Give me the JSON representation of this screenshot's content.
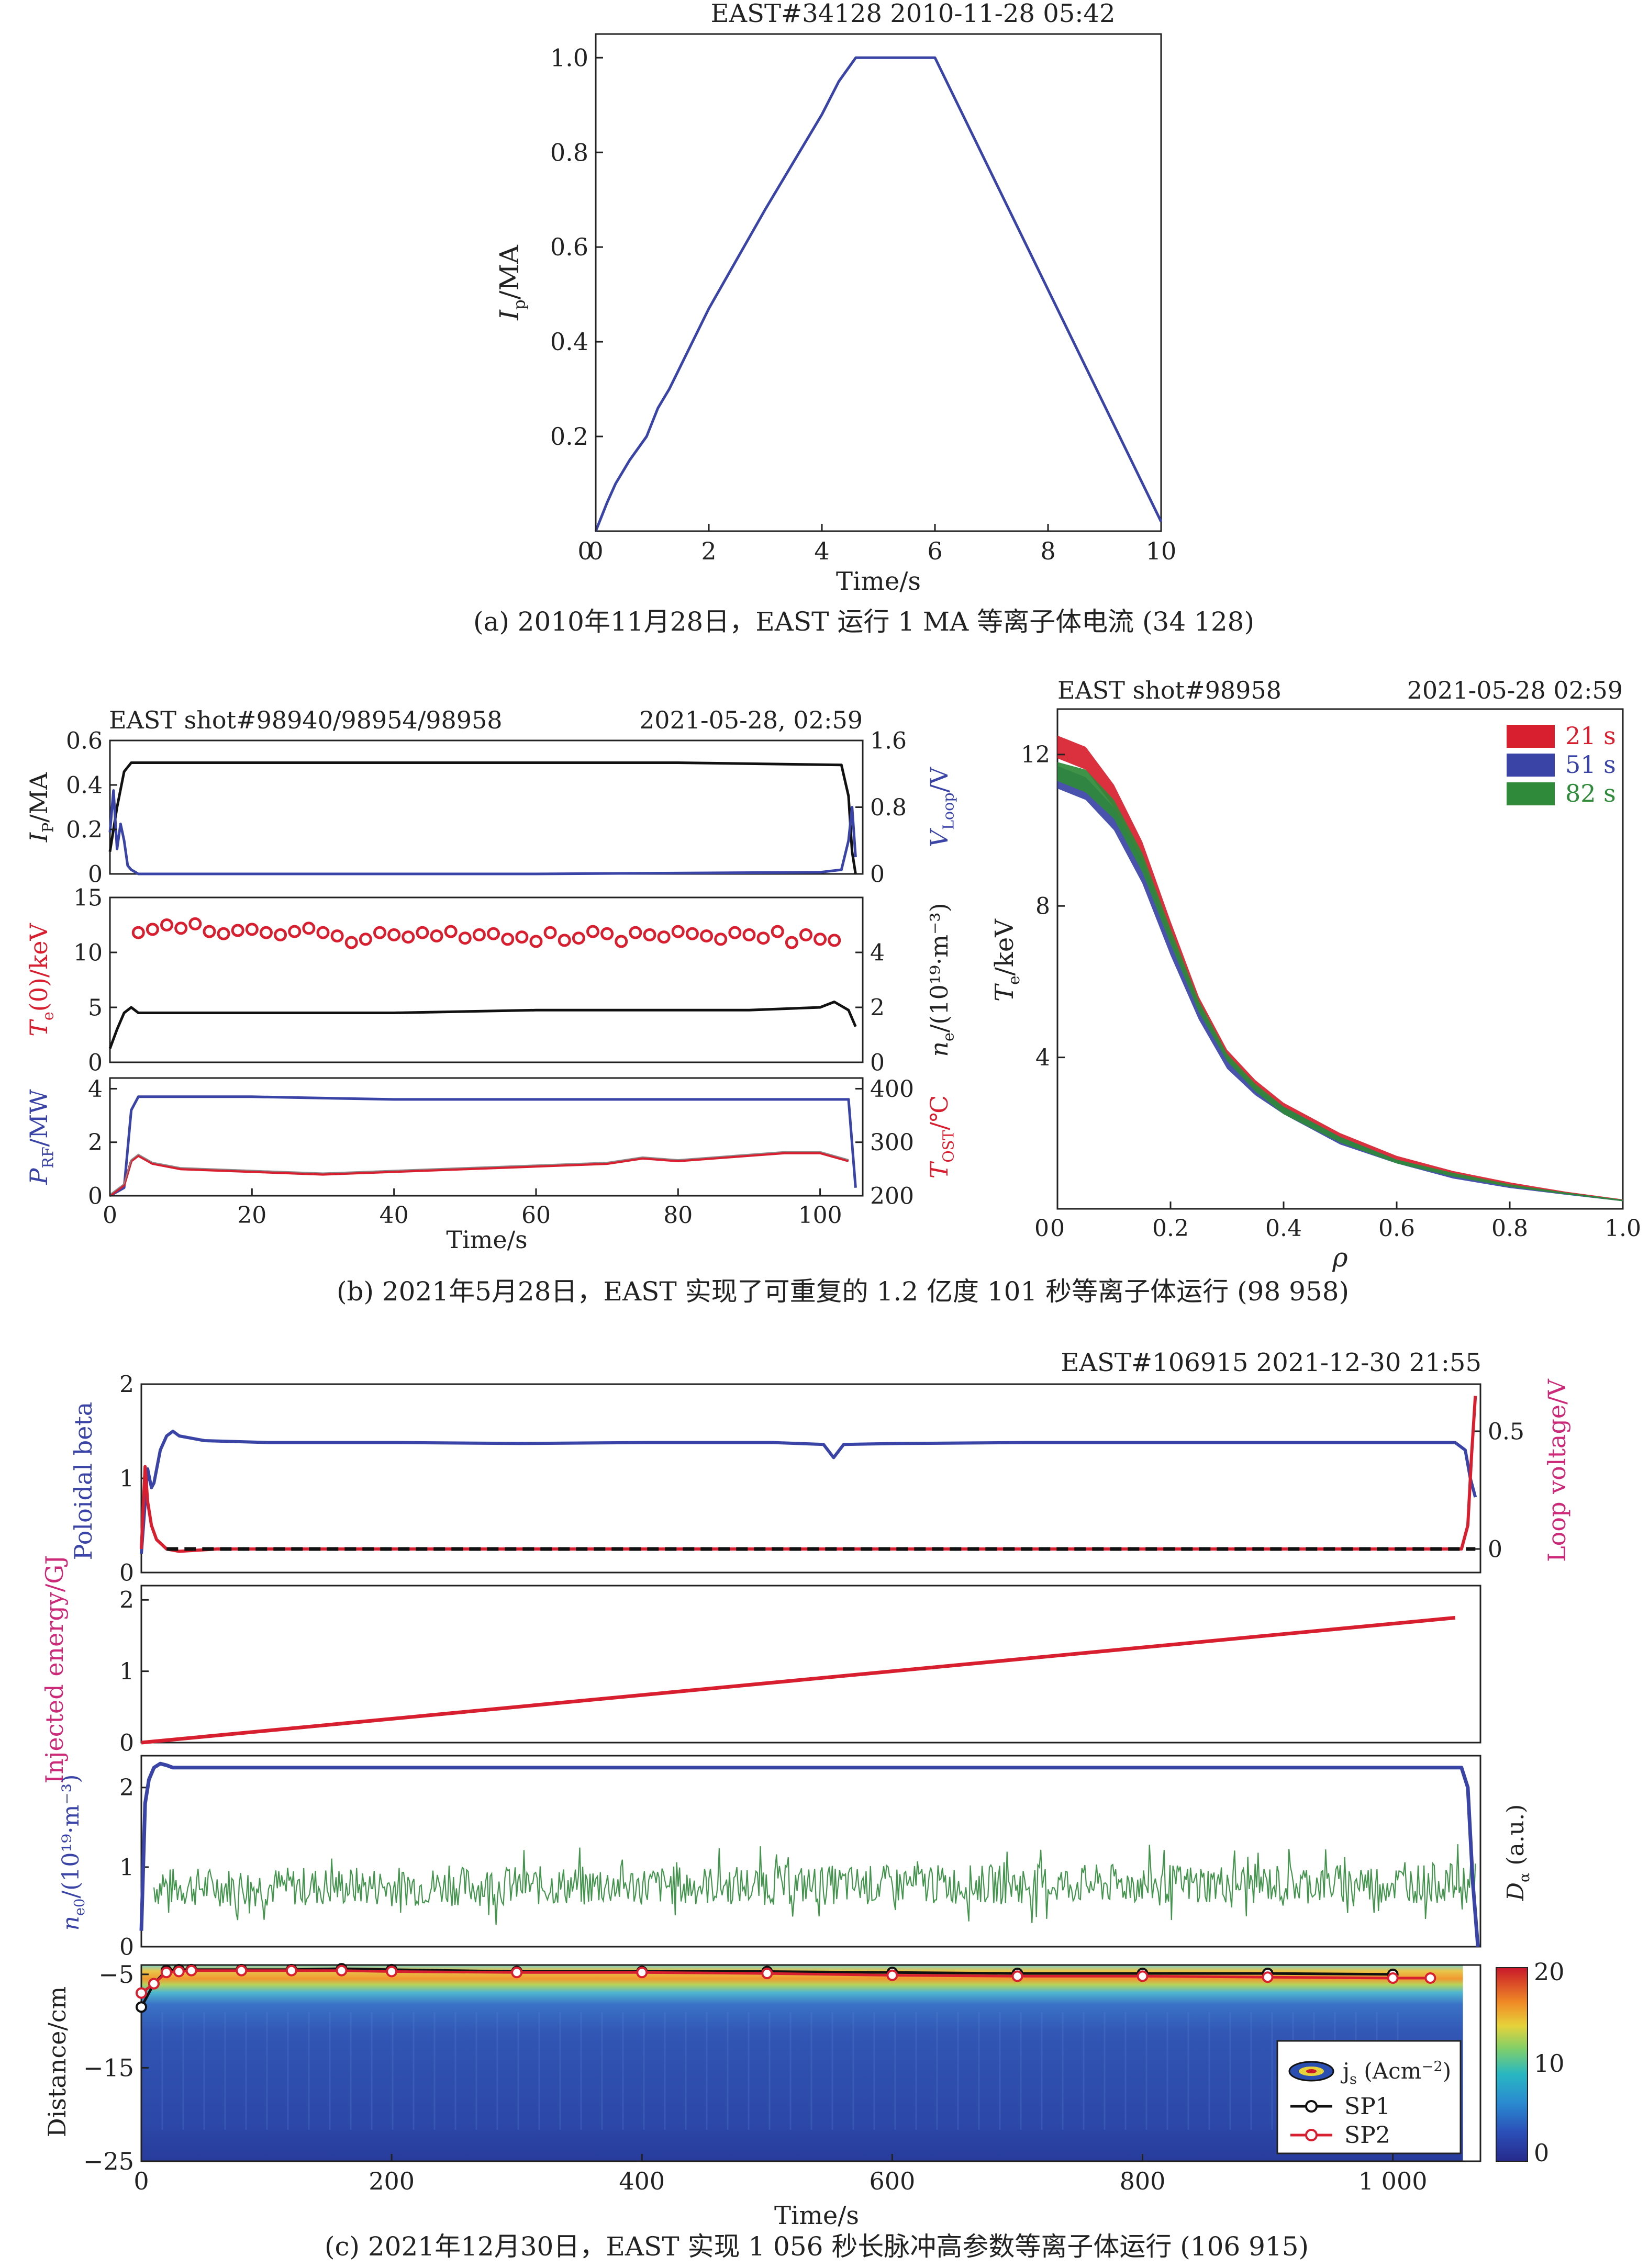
{
  "colors": {
    "blue": "#3a44a6",
    "red": "#d81f2f",
    "green": "#2f8a3a",
    "black": "#111111",
    "pink": "#cc2a78",
    "orange": "#d0702a",
    "gray": "#8a8a8a",
    "frame": "#222222"
  },
  "panel_a": {
    "title": "EAST#34128 2010-11-28 05:42",
    "caption": "(a) 2010年11月28日，EAST 运行 1 MA 等离子体电流 (34 128)"
  },
  "panel_b": {
    "left_title": "EAST shot#98940/98954/98958",
    "left_date": "2021-05-28, 02:59",
    "right_title": "EAST shot#98958",
    "right_date": "2021-05-28 02:59",
    "caption": "(b) 2021年5月28日，EAST 实现了可重复的 1.2 亿度 101 秒等离子体运行 (98 958)"
  },
  "panel_c": {
    "title": "EAST#106915 2021-12-30 21:55",
    "caption": "(c) 2021年12月30日，EAST 实现 1 056 秒长脉冲高参数等离子体运行 (106 915)"
  },
  "chart_data": [
    {
      "id": "a",
      "type": "line",
      "title": "EAST#34128 2010-11-28 05:42",
      "xlabel": "Time/s",
      "ylabel_main": "I",
      "ylabel_sub": "p",
      "ylabel_tail": "/MA",
      "xlim": [
        0,
        10
      ],
      "ylim": [
        0,
        1.05
      ],
      "xticks": [
        "0",
        "2",
        "4",
        "6",
        "8",
        "10"
      ],
      "yticks": [
        "0.2",
        "0.4",
        "0.6",
        "0.8",
        "1.0"
      ],
      "series": [
        {
          "color": "blue",
          "x": [
            0,
            0.2,
            0.35,
            0.6,
            0.9,
            1.1,
            1.3,
            2.0,
            3.0,
            4.0,
            4.3,
            4.6,
            5.0,
            6.0,
            10.0
          ],
          "y": [
            0,
            0.06,
            0.1,
            0.15,
            0.2,
            0.26,
            0.3,
            0.47,
            0.68,
            0.88,
            0.95,
            1.0,
            1.0,
            1.0,
            0.02
          ]
        }
      ]
    },
    {
      "id": "b1",
      "type": "line",
      "title": "EAST shot#98940/98954/98958",
      "xlim": [
        0,
        106
      ],
      "ylim": [
        0,
        0.6
      ],
      "yticks": [
        "0",
        "0.2",
        "0.4",
        "0.6"
      ],
      "y2lim": [
        0,
        1.6
      ],
      "y2ticks": [
        "0",
        "0.8",
        "1.6"
      ],
      "ylabel_main": "I",
      "ylabel_sub": "P",
      "ylabel_tail": "/MA",
      "y2label_main": "V",
      "y2label_sub": "Loop",
      "y2label_tail": "/V",
      "series": [
        {
          "color": "black",
          "axis": "left",
          "x": [
            0,
            1,
            2,
            3,
            4,
            20,
            50,
            80,
            103,
            104,
            104.5,
            105
          ],
          "y": [
            0.1,
            0.3,
            0.46,
            0.5,
            0.5,
            0.5,
            0.5,
            0.5,
            0.49,
            0.35,
            0.1,
            0.0
          ]
        },
        {
          "color": "blue",
          "axis": "right",
          "x": [
            0,
            0.5,
            1,
            1.5,
            2,
            2.5,
            3,
            4,
            20,
            60,
            100,
            103,
            104,
            104.5,
            105
          ],
          "y": [
            0.5,
            1.0,
            0.3,
            0.6,
            0.4,
            0.1,
            0.05,
            0.0,
            0.0,
            0.0,
            0.02,
            0.05,
            0.4,
            0.8,
            0.2
          ]
        }
      ]
    },
    {
      "id": "b2",
      "type": "scatter",
      "xlim": [
        0,
        106
      ],
      "ylim": [
        0,
        15
      ],
      "yticks": [
        "0",
        "5",
        "10",
        "15"
      ],
      "y2lim": [
        0,
        6
      ],
      "y2ticks": [
        "0",
        "2",
        "4"
      ],
      "ylabel_main": "T",
      "ylabel_sub": "e",
      "ylabel_tail": "(0)/keV",
      "y2label_main": "n",
      "y2label_sub": "e",
      "y2label_tail": "/(10¹⁹·m⁻³)",
      "series": [
        {
          "color": "red",
          "axis": "left",
          "marker": "circle",
          "x": [
            4,
            6,
            8,
            10,
            12,
            14,
            16,
            18,
            20,
            22,
            24,
            26,
            28,
            30,
            32,
            34,
            36,
            38,
            40,
            42,
            44,
            46,
            48,
            50,
            52,
            54,
            56,
            58,
            60,
            62,
            64,
            66,
            68,
            70,
            72,
            74,
            76,
            78,
            80,
            82,
            84,
            86,
            88,
            90,
            92,
            94,
            96,
            98,
            100,
            102
          ],
          "y": [
            11.8,
            12.1,
            12.5,
            12.2,
            12.6,
            11.9,
            11.7,
            12.0,
            12.1,
            11.8,
            11.6,
            11.9,
            12.2,
            11.8,
            11.5,
            10.9,
            11.2,
            11.8,
            11.6,
            11.4,
            11.8,
            11.5,
            11.9,
            11.3,
            11.6,
            11.7,
            11.2,
            11.4,
            11.0,
            11.8,
            11.1,
            11.3,
            11.9,
            11.7,
            11.0,
            11.8,
            11.6,
            11.4,
            11.9,
            11.7,
            11.5,
            11.2,
            11.8,
            11.6,
            11.3,
            11.9,
            10.9,
            11.6,
            11.2,
            11.1
          ]
        },
        {
          "color": "black",
          "axis": "right",
          "x": [
            0,
            1,
            2,
            3,
            4,
            10,
            20,
            40,
            60,
            80,
            90,
            100,
            102,
            104,
            105
          ],
          "y": [
            0.5,
            1.2,
            1.8,
            2.0,
            1.8,
            1.8,
            1.8,
            1.8,
            1.9,
            1.9,
            1.9,
            2.0,
            2.2,
            1.9,
            1.3
          ]
        }
      ]
    },
    {
      "id": "b3",
      "type": "line",
      "xlabel": "Time/s",
      "xlim": [
        0,
        106
      ],
      "xticks": [
        "0",
        "20",
        "40",
        "60",
        "80",
        "100"
      ],
      "ylim": [
        0,
        4.4
      ],
      "yticks": [
        "0",
        "2",
        "4"
      ],
      "y2lim": [
        200,
        420
      ],
      "y2ticks": [
        "200",
        "300",
        "400"
      ],
      "ylabel_main": "P",
      "ylabel_sub": "RF",
      "ylabel_tail": "/MW",
      "y2label_main": "T",
      "y2label_sub": "OST",
      "y2label_tail": "/℃",
      "series": [
        {
          "color": "blue",
          "axis": "left",
          "x": [
            0,
            2,
            3,
            4,
            20,
            40,
            60,
            80,
            90,
            100,
            104,
            105
          ],
          "y": [
            0,
            0.3,
            3.2,
            3.7,
            3.7,
            3.6,
            3.6,
            3.6,
            3.6,
            3.6,
            3.6,
            0.3
          ]
        },
        {
          "color": "red",
          "axis": "left",
          "x": [
            0,
            2,
            3,
            4,
            6,
            10,
            20,
            30,
            40,
            50,
            60,
            70,
            75,
            80,
            90,
            95,
            100,
            104
          ],
          "y": [
            0,
            0.4,
            1.3,
            1.5,
            1.2,
            1.0,
            0.9,
            0.8,
            0.9,
            1.0,
            1.1,
            1.2,
            1.4,
            1.3,
            1.5,
            1.6,
            1.6,
            1.3
          ]
        }
      ]
    },
    {
      "id": "b4",
      "type": "area",
      "title": "EAST shot#98958",
      "xlabel": "ρ",
      "xlim": [
        0,
        1.0
      ],
      "xticks": [
        "0",
        "0.2",
        "0.4",
        "0.6",
        "0.8",
        "1.0"
      ],
      "ylim": [
        0,
        13.2
      ],
      "yticks": [
        "4",
        "8",
        "12"
      ],
      "ylabel_main": "T",
      "ylabel_sub": "e",
      "ylabel_tail": "/keV",
      "rho": [
        0,
        0.05,
        0.1,
        0.15,
        0.2,
        0.25,
        0.3,
        0.35,
        0.4,
        0.5,
        0.6,
        0.7,
        0.8,
        0.9,
        1.0
      ],
      "series": [
        {
          "name": "21 s",
          "color": "red",
          "upper": [
            12.5,
            12.2,
            11.2,
            9.7,
            7.6,
            5.6,
            4.2,
            3.4,
            2.8,
            2.0,
            1.4,
            1.0,
            0.7,
            0.45,
            0.25
          ],
          "lower": [
            11.9,
            11.6,
            10.6,
            9.1,
            7.1,
            5.2,
            3.9,
            3.1,
            2.6,
            1.8,
            1.3,
            0.9,
            0.6,
            0.4,
            0.2
          ]
        },
        {
          "name": "51 s",
          "color": "blue",
          "upper": [
            11.7,
            11.4,
            10.6,
            9.2,
            7.2,
            5.4,
            4.0,
            3.2,
            2.7,
            1.9,
            1.3,
            0.9,
            0.6,
            0.42,
            0.24
          ],
          "lower": [
            11.1,
            10.8,
            10.0,
            8.6,
            6.7,
            5.0,
            3.7,
            3.0,
            2.5,
            1.7,
            1.2,
            0.8,
            0.55,
            0.37,
            0.2
          ]
        },
        {
          "name": "82 s",
          "color": "green",
          "upper": [
            11.8,
            11.6,
            10.8,
            9.4,
            7.4,
            5.5,
            4.1,
            3.3,
            2.7,
            1.9,
            1.3,
            0.95,
            0.65,
            0.43,
            0.24
          ],
          "lower": [
            11.3,
            11.0,
            10.3,
            8.9,
            7.0,
            5.2,
            3.9,
            3.1,
            2.5,
            1.75,
            1.2,
            0.85,
            0.58,
            0.38,
            0.2
          ]
        }
      ]
    },
    {
      "id": "c1",
      "type": "line",
      "title": "EAST#106915 2021-12-30 21:55",
      "xlim": [
        0,
        1060
      ],
      "ylim": [
        0,
        2
      ],
      "yticks": [
        "0",
        "1",
        "2"
      ],
      "y2lim": [
        -0.1,
        0.7
      ],
      "y2ticks": [
        "0",
        "0.5"
      ],
      "ylabel": "Poloidal beta",
      "y2label": "Loop voltage/V",
      "series": [
        {
          "color": "blue",
          "axis": "left",
          "x": [
            0,
            5,
            8,
            10,
            15,
            20,
            25,
            30,
            50,
            100,
            200,
            300,
            400,
            500,
            540,
            548,
            556,
            600,
            700,
            800,
            900,
            1000,
            1040,
            1048,
            1052,
            1056
          ],
          "y": [
            0.2,
            1.1,
            0.9,
            0.95,
            1.3,
            1.45,
            1.5,
            1.45,
            1.4,
            1.38,
            1.38,
            1.37,
            1.38,
            1.38,
            1.36,
            1.22,
            1.36,
            1.37,
            1.38,
            1.38,
            1.38,
            1.38,
            1.38,
            1.3,
            1.0,
            0.8
          ]
        },
        {
          "color": "red",
          "axis": "right",
          "x": [
            0,
            3,
            5,
            8,
            12,
            20,
            30,
            60,
            200,
            500,
            800,
            1000,
            1045,
            1050,
            1053,
            1056
          ],
          "y": [
            0.0,
            0.35,
            0.2,
            0.1,
            0.04,
            0.0,
            -0.01,
            0.0,
            0.0,
            0.0,
            0.0,
            0.0,
            0.0,
            0.1,
            0.4,
            0.65
          ]
        },
        {
          "color": "black",
          "axis": "right",
          "dashed": true,
          "x": [
            20,
            1056
          ],
          "y": [
            0.0,
            0.0
          ]
        }
      ]
    },
    {
      "id": "c2",
      "type": "line",
      "xlim": [
        0,
        1060
      ],
      "ylim": [
        0,
        2.2
      ],
      "yticks": [
        "0",
        "1",
        "2"
      ],
      "ylabel": "Injected energy/GJ",
      "series": [
        {
          "color": "red",
          "x": [
            0,
            1040
          ],
          "y": [
            0.0,
            1.75
          ]
        }
      ]
    },
    {
      "id": "c3",
      "type": "line",
      "xlim": [
        0,
        1060
      ],
      "ylim": [
        0,
        2.4
      ],
      "yticks": [
        "0",
        "1",
        "2"
      ],
      "ylabel_main": "n",
      "ylabel_sub": "e0",
      "ylabel_tail": "/(10¹⁹·m⁻³)",
      "y2label_main": "D",
      "y2label_sub": "α",
      "y2label_tail": " (a.u.)",
      "series": [
        {
          "color": "blue",
          "x": [
            0,
            3,
            6,
            10,
            15,
            20,
            25,
            30,
            100,
            300,
            500,
            700,
            900,
            1000,
            1045,
            1050,
            1054,
            1058
          ],
          "y": [
            0.2,
            1.8,
            2.1,
            2.25,
            2.3,
            2.28,
            2.25,
            2.25,
            2.25,
            2.25,
            2.25,
            2.25,
            2.25,
            2.25,
            2.25,
            2.0,
            0.8,
            0.0
          ]
        },
        {
          "color": "green",
          "noise": true,
          "x": [
            10,
            1056
          ],
          "y": [
            0.75,
            0.8
          ]
        }
      ]
    },
    {
      "id": "c4",
      "type": "heatmap",
      "xlabel": "Time/s",
      "xlim": [
        0,
        1070
      ],
      "xticks": [
        "0",
        "200",
        "400",
        "600",
        "800",
        "1 000"
      ],
      "ylim": [
        -25,
        -4
      ],
      "yticks": [
        "−5",
        "−15",
        "−25"
      ],
      "ylabel": "Distance/cm",
      "colorbar_ticks": [
        "0",
        "10",
        "20"
      ],
      "legend": [
        "j",
        "s",
        " (Acm",
        "−2",
        ")",
        "SP1",
        "SP2"
      ],
      "series": [
        {
          "name": "SP1",
          "color": "black",
          "x": [
            0,
            10,
            20,
            30,
            40,
            80,
            120,
            160,
            200,
            300,
            400,
            500,
            600,
            700,
            800,
            900,
            1000
          ],
          "y": [
            -8.5,
            -6,
            -4.6,
            -4.5,
            -4.5,
            -4.5,
            -4.5,
            -4.4,
            -4.5,
            -4.7,
            -4.7,
            -4.7,
            -4.8,
            -4.9,
            -4.9,
            -4.9,
            -5.0
          ]
        },
        {
          "name": "SP2",
          "color": "red",
          "x": [
            0,
            10,
            20,
            30,
            40,
            80,
            120,
            160,
            200,
            300,
            400,
            500,
            600,
            700,
            800,
            900,
            1000,
            1030
          ],
          "y": [
            -7,
            -6,
            -4.8,
            -4.7,
            -4.6,
            -4.6,
            -4.6,
            -4.6,
            -4.7,
            -4.8,
            -4.8,
            -4.9,
            -5.1,
            -5.2,
            -5.2,
            -5.3,
            -5.4,
            -5.4
          ]
        }
      ]
    }
  ]
}
